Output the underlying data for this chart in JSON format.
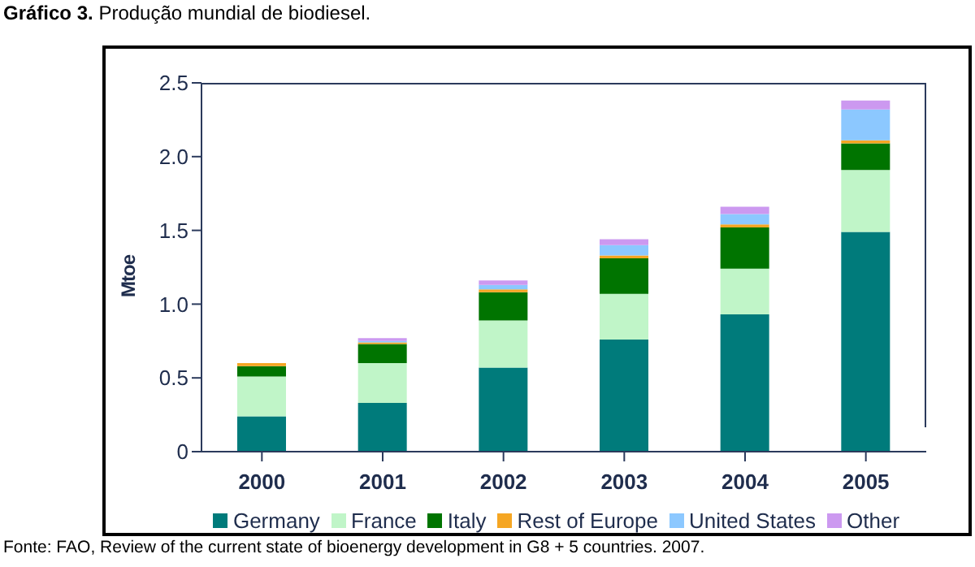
{
  "chart_data": {
    "type": "bar",
    "title": "Gráfico 3. Produção mundial de biodiesel.",
    "ylabel": "Mtoe",
    "categories": [
      "2000",
      "2001",
      "2002",
      "2003",
      "2004",
      "2005"
    ],
    "stacked": true,
    "series": [
      {
        "name": "Germany",
        "color": "#007b7b",
        "values": [
          0.24,
          0.33,
          0.57,
          0.76,
          0.93,
          1.49
        ]
      },
      {
        "name": "France",
        "color": "#c0f5c8",
        "values": [
          0.27,
          0.27,
          0.32,
          0.31,
          0.31,
          0.42
        ]
      },
      {
        "name": "Italy",
        "color": "#007400",
        "values": [
          0.07,
          0.13,
          0.19,
          0.24,
          0.28,
          0.18
        ]
      },
      {
        "name": "Rest of Europe",
        "color": "#f5a623",
        "values": [
          0.02,
          0.01,
          0.02,
          0.02,
          0.02,
          0.02
        ]
      },
      {
        "name": "United States",
        "color": "#8cc8ff",
        "values": [
          0.0,
          0.01,
          0.03,
          0.07,
          0.07,
          0.21
        ]
      },
      {
        "name": "Other",
        "color": "#cc99f0",
        "values": [
          0.0,
          0.02,
          0.03,
          0.04,
          0.05,
          0.06
        ]
      }
    ],
    "ylim": [
      0,
      2.5
    ],
    "yticks": [
      0,
      {
        "value": 0.5,
        "label": "0.5"
      },
      {
        "value": 1,
        "label": "1.0"
      },
      {
        "value": 1.5,
        "label": "1.5"
      },
      {
        "value": 2,
        "label": "2.0"
      },
      {
        "value": 2.5,
        "label": "2.5"
      }
    ],
    "grid": false,
    "legend": "bottom",
    "annotations": [
      "Fonte: FAO, Review of the current state of bioenergy development in G8 + 5 countries. 2007."
    ]
  }
}
